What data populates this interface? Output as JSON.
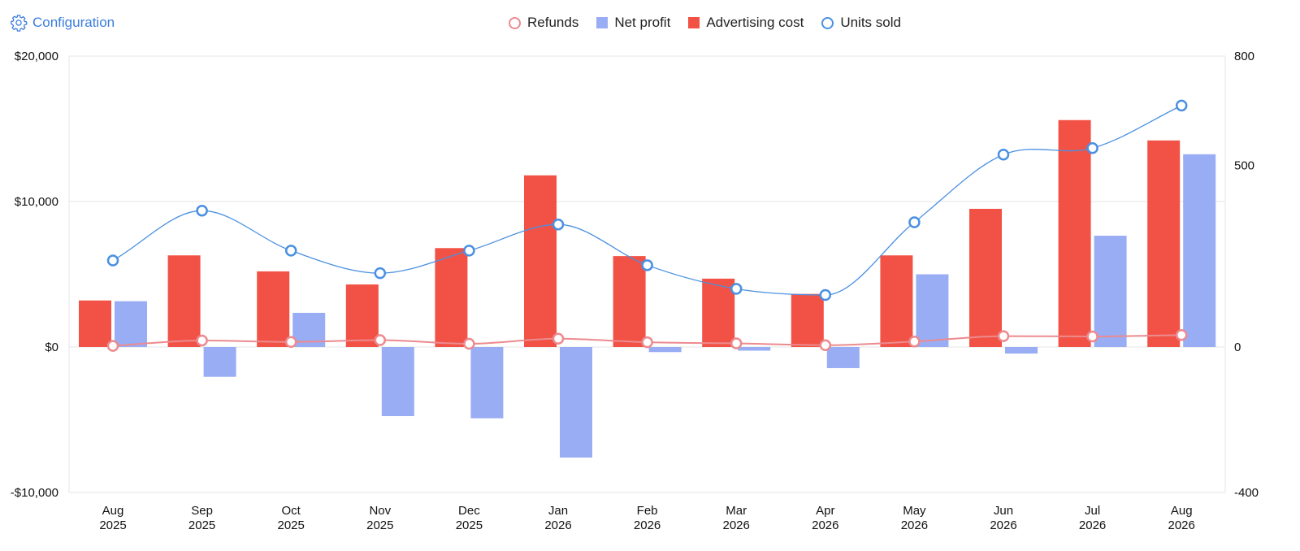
{
  "header": {
    "config_label": "Configuration",
    "config_icon": "gear-icon"
  },
  "legend": [
    {
      "label": "Refunds",
      "swatch": "ring",
      "color": "#ec8a8f"
    },
    {
      "label": "Net profit",
      "swatch": "box",
      "color": "#99adf4"
    },
    {
      "label": "Advertising cost",
      "swatch": "box",
      "color": "#f25245"
    },
    {
      "label": "Units sold",
      "swatch": "ring",
      "color": "#4a90e2"
    }
  ],
  "chart_data": {
    "type": "bar",
    "categories": [
      [
        "Aug",
        "2025"
      ],
      [
        "Sep",
        "2025"
      ],
      [
        "Oct",
        "2025"
      ],
      [
        "Nov",
        "2025"
      ],
      [
        "Dec",
        "2025"
      ],
      [
        "Jan",
        "2026"
      ],
      [
        "Feb",
        "2026"
      ],
      [
        "Mar",
        "2026"
      ],
      [
        "Apr",
        "2026"
      ],
      [
        "May",
        "2026"
      ],
      [
        "Jun",
        "2026"
      ],
      [
        "Jul",
        "2026"
      ],
      [
        "Aug",
        "2026"
      ]
    ],
    "y_left": {
      "min": -10000,
      "max": 20000,
      "ticks": [
        -10000,
        0,
        10000,
        20000
      ],
      "tick_labels": [
        "-$10,000",
        "$0",
        "$10,000",
        "$20,000"
      ]
    },
    "y_right": {
      "min": -400,
      "max": 800,
      "ticks": [
        -400,
        0,
        500,
        800
      ],
      "tick_labels": [
        "-400",
        "0",
        "500",
        "800"
      ]
    },
    "grid": true,
    "legend_position": "top-center",
    "series": [
      {
        "name": "Advertising cost",
        "type": "bar",
        "axis": "left",
        "color": "#f25245",
        "values": [
          3200,
          6300,
          5200,
          4300,
          6800,
          11800,
          6250,
          4700,
          3650,
          6300,
          9500,
          15600,
          14200
        ]
      },
      {
        "name": "Net profit",
        "type": "bar",
        "axis": "left",
        "color": "#99adf4",
        "values": [
          3150,
          -2050,
          2350,
          -4750,
          -4900,
          -7600,
          -350,
          -250,
          -1450,
          5000,
          -450,
          7650,
          13250
        ]
      },
      {
        "name": "Refunds",
        "type": "line",
        "axis": "right",
        "color": "#ec8a8f",
        "values": [
          3,
          18,
          14,
          19,
          9,
          23,
          13,
          10,
          5,
          15,
          30,
          29,
          33
        ]
      },
      {
        "name": "Units sold",
        "type": "line",
        "axis": "right",
        "color": "#4a90e2",
        "values": [
          238,
          375,
          265,
          203,
          265,
          337,
          225,
          160,
          143,
          343,
          529,
          547,
          664
        ]
      }
    ]
  }
}
